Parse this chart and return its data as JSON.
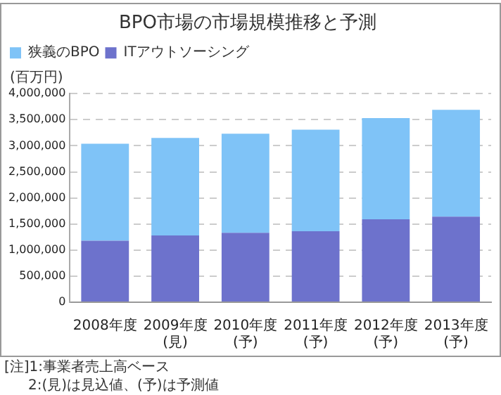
{
  "chart_data": {
    "type": "bar",
    "title": "BPO市場の市場規模推移と予測",
    "ylabel": "(百万円)",
    "categories": [
      "2008年度",
      "2009年度\n(見)",
      "2010年度\n(予)",
      "2011年度\n(予)",
      "2012年度\n(予)",
      "2013年度\n(予)"
    ],
    "series": [
      {
        "name": "ITアウトソーシング",
        "color": "#6d72cc",
        "values": [
          1180000,
          1280000,
          1330000,
          1360000,
          1590000,
          1640000
        ]
      },
      {
        "name": "狭義のBPO",
        "color": "#7fc3f7",
        "values": [
          1860000,
          1870000,
          1900000,
          1950000,
          1940000,
          2050000
        ]
      }
    ],
    "stacked": true,
    "ylim": [
      0,
      4000000
    ],
    "yticks": [
      0,
      {
        "value": 500000,
        "label": "500,000"
      },
      {
        "value": 1000000,
        "label": "1,000,000"
      },
      {
        "value": 1500000,
        "label": "1,500,000"
      },
      {
        "value": 2000000,
        "label": "2,000,000"
      },
      {
        "value": 2500000,
        "label": "2,500,000"
      },
      {
        "value": 3000000,
        "label": "3,000,000"
      },
      {
        "value": 3500000,
        "label": "3,500,000"
      },
      {
        "value": 4000000,
        "label": "4,000,000"
      }
    ],
    "grid": "y",
    "legend": "top left",
    "annotations": [
      "[注]1:事業者売上高ベース",
      "2:(見)は見込値、(予)は予測値"
    ]
  }
}
